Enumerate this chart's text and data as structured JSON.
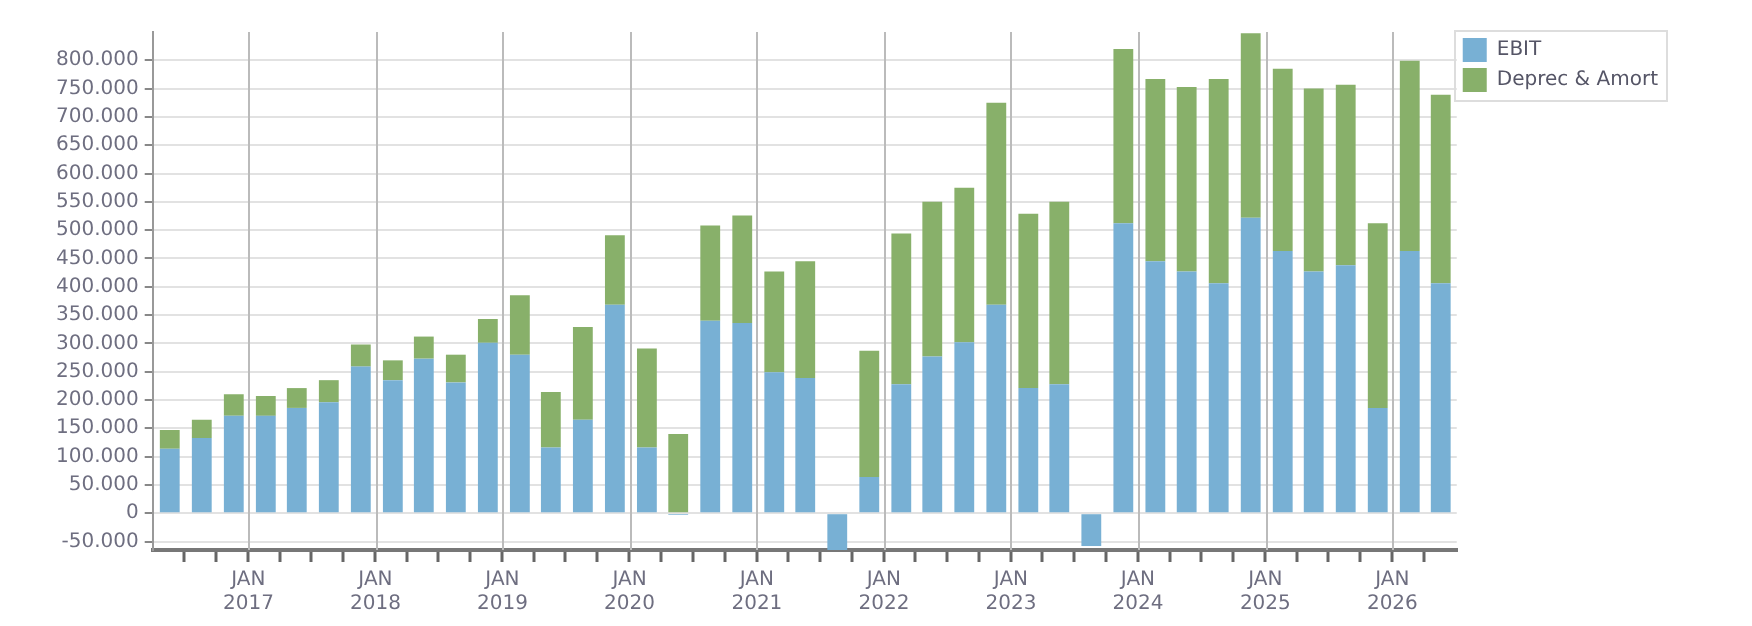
{
  "chart_data": {
    "type": "bar",
    "stacked": true,
    "legend": "top right",
    "grid": true,
    "x": [
      "2016-05-20",
      "2016-08-20",
      "2016-11-20",
      "2017-02-20",
      "2017-05-20",
      "2017-08-20",
      "2017-11-20",
      "2018-02-20",
      "2018-05-20",
      "2018-08-20",
      "2018-11-20",
      "2019-02-20",
      "2019-05-20",
      "2019-08-20",
      "2019-11-20",
      "2020-02-20",
      "2020-05-20",
      "2020-08-20",
      "2020-11-20",
      "2021-02-20",
      "2021-05-20",
      "2021-08-20",
      "2021-11-20",
      "2022-02-20",
      "2022-05-20",
      "2022-08-20",
      "2022-11-20",
      "2023-02-20",
      "2023-05-20",
      "2023-08-20",
      "2023-11-20",
      "2024-02-20",
      "2024-05-20",
      "2024-08-20",
      "2024-11-20",
      "2025-02-20",
      "2025-05-20",
      "2025-08-20",
      "2025-11-20",
      "2026-02-20",
      "2026-05-20"
    ],
    "series": [
      {
        "name": "EBIT",
        "color": "#78b0d4",
        "values": [
          114000,
          133000,
          172000,
          172000,
          186000,
          196000,
          259000,
          235000,
          273000,
          231000,
          301000,
          280000,
          116000,
          165000,
          368000,
          116000,
          -3000,
          340000,
          336000,
          249000,
          239000,
          -65000,
          64000,
          228000,
          277000,
          302000,
          368000,
          221000,
          228000,
          -58000,
          512000,
          445000,
          427000,
          406000,
          522000,
          463000,
          427000,
          438000,
          186000,
          463000,
          406000
        ]
      },
      {
        "name": "Deprec & Amort",
        "color": "#88b06a",
        "values": [
          33000,
          32000,
          38000,
          35000,
          35000,
          39000,
          39000,
          35000,
          39000,
          49000,
          42000,
          105000,
          98000,
          164000,
          123000,
          175000,
          140000,
          168000,
          190000,
          178000,
          206000,
          null,
          223000,
          266000,
          273000,
          273000,
          357000,
          308000,
          322000,
          null,
          308000,
          322000,
          326000,
          361000,
          326000,
          322000,
          323000,
          319000,
          326000,
          336000,
          333000
        ]
      }
    ],
    "ylim": [
      -65000,
      850000
    ],
    "yticks": [
      {
        "value": -50000,
        "label": "-50.000"
      },
      {
        "value": 0,
        "label": "0"
      },
      {
        "value": 50000,
        "label": "50.000"
      },
      {
        "value": 100000,
        "label": "100.000"
      },
      {
        "value": 150000,
        "label": "150.000"
      },
      {
        "value": 200000,
        "label": "200.000"
      },
      {
        "value": 250000,
        "label": "250.000"
      },
      {
        "value": 300000,
        "label": "300.000"
      },
      {
        "value": 350000,
        "label": "350.000"
      },
      {
        "value": 400000,
        "label": "400.000"
      },
      {
        "value": 450000,
        "label": "450.000"
      },
      {
        "value": 500000,
        "label": "500.000"
      },
      {
        "value": 550000,
        "label": "550.000"
      },
      {
        "value": 600000,
        "label": "600.000"
      },
      {
        "value": 650000,
        "label": "650.000"
      },
      {
        "value": 700000,
        "label": "700.000"
      },
      {
        "value": 750000,
        "label": "750.000"
      },
      {
        "value": 800000,
        "label": "800.000"
      }
    ],
    "xlim": [
      "2016-04-01",
      "2026-07-05"
    ],
    "xticks": [
      {
        "value": "2016-07-01",
        "label": null
      },
      {
        "value": "2016-10-01",
        "label": null
      },
      {
        "value": "2017-01-01",
        "label": "JAN 2017"
      },
      {
        "value": "2017-04-01",
        "label": null
      },
      {
        "value": "2017-07-01",
        "label": null
      },
      {
        "value": "2017-10-01",
        "label": null
      },
      {
        "value": "2018-01-01",
        "label": "JAN 2018"
      },
      {
        "value": "2018-04-01",
        "label": null
      },
      {
        "value": "2018-07-01",
        "label": null
      },
      {
        "value": "2018-10-01",
        "label": null
      },
      {
        "value": "2019-01-01",
        "label": "JAN 2019"
      },
      {
        "value": "2019-04-01",
        "label": null
      },
      {
        "value": "2019-07-01",
        "label": null
      },
      {
        "value": "2019-10-01",
        "label": null
      },
      {
        "value": "2020-01-01",
        "label": "JAN 2020"
      },
      {
        "value": "2020-04-01",
        "label": null
      },
      {
        "value": "2020-07-01",
        "label": null
      },
      {
        "value": "2020-10-01",
        "label": null
      },
      {
        "value": "2021-01-01",
        "label": "JAN 2021"
      },
      {
        "value": "2021-04-01",
        "label": null
      },
      {
        "value": "2021-07-01",
        "label": null
      },
      {
        "value": "2021-10-01",
        "label": null
      },
      {
        "value": "2022-01-01",
        "label": "JAN 2022"
      },
      {
        "value": "2022-04-01",
        "label": null
      },
      {
        "value": "2022-07-01",
        "label": null
      },
      {
        "value": "2022-10-01",
        "label": null
      },
      {
        "value": "2023-01-01",
        "label": "JAN 2023"
      },
      {
        "value": "2023-04-01",
        "label": null
      },
      {
        "value": "2023-07-01",
        "label": null
      },
      {
        "value": "2023-10-01",
        "label": null
      },
      {
        "value": "2024-01-01",
        "label": "JAN 2024"
      },
      {
        "value": "2024-04-01",
        "label": null
      },
      {
        "value": "2024-07-01",
        "label": null
      },
      {
        "value": "2024-10-01",
        "label": null
      },
      {
        "value": "2025-01-01",
        "label": "JAN 2025"
      },
      {
        "value": "2025-04-01",
        "label": null
      },
      {
        "value": "2025-07-01",
        "label": null
      },
      {
        "value": "2025-10-01",
        "label": null
      },
      {
        "value": "2026-01-01",
        "label": "JAN 2026"
      },
      {
        "value": "2026-04-01",
        "label": null
      }
    ]
  }
}
